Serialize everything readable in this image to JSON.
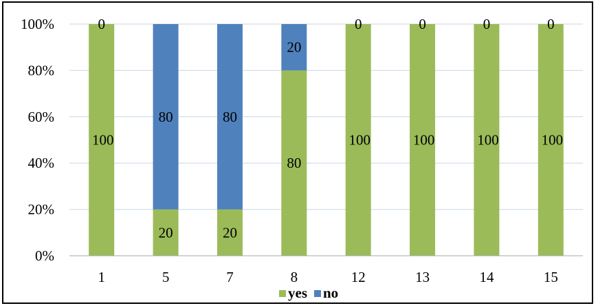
{
  "chart_data": {
    "type": "bar",
    "stacked": "percent",
    "categories": [
      "1",
      "5",
      "7",
      "8",
      "12",
      "13",
      "14",
      "15"
    ],
    "series": [
      {
        "name": "yes",
        "color": "#9bbb59",
        "values": [
          100,
          20,
          20,
          80,
          100,
          100,
          100,
          100
        ]
      },
      {
        "name": "no",
        "color": "#4f81bd",
        "values": [
          0,
          80,
          80,
          20,
          0,
          0,
          0,
          0
        ]
      }
    ],
    "yticks": [
      "0%",
      "20%",
      "40%",
      "60%",
      "80%",
      "100%"
    ],
    "ylim": [
      0,
      100
    ],
    "grid": true,
    "gridColor": "#c8d7e6",
    "legend": "bottom",
    "title": "",
    "xlabel": "",
    "ylabel": ""
  }
}
